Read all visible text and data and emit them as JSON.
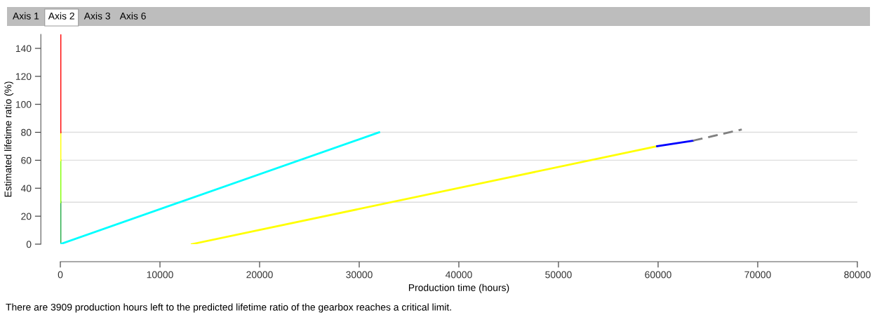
{
  "chart_data": {
    "type": "line",
    "xlabel": "Production time (hours)",
    "ylabel": "Estimated lifetime ratio (%)",
    "xlim": [
      0,
      80000
    ],
    "xticks": [
      0,
      10000,
      20000,
      30000,
      40000,
      50000,
      60000,
      70000,
      80000
    ],
    "ylim": [
      0,
      150
    ],
    "yticks": [
      0,
      20,
      40,
      60,
      80,
      100,
      120,
      140
    ],
    "grid": false,
    "series": [
      {
        "color": "#22aa44",
        "x": [
          0,
          0
        ],
        "values": [
          0,
          30
        ]
      },
      {
        "color": "#80ff00",
        "x": [
          0,
          0
        ],
        "values": [
          30,
          60
        ]
      },
      {
        "color": "#ffff00",
        "x": [
          0,
          0
        ],
        "values": [
          60,
          80
        ]
      },
      {
        "color": "#ff0000",
        "x": [
          0,
          0
        ],
        "values": [
          80,
          150
        ]
      },
      {
        "color": "#00ffff",
        "x": [
          0,
          32000
        ],
        "values": [
          0,
          80
        ]
      },
      {
        "color": "#ffff00",
        "x": [
          13200,
          59900
        ],
        "values": [
          0,
          70
        ]
      },
      {
        "color": "#0000ff",
        "x": [
          59900,
          63500
        ],
        "values": [
          70,
          74
        ]
      },
      {
        "color": "#808080",
        "x": [
          63500,
          68400
        ],
        "values": [
          74,
          82
        ],
        "line_style": "dashed"
      }
    ],
    "ref_lines": [
      {
        "axis": "y",
        "value": 30,
        "color": "#dddddd"
      },
      {
        "axis": "y",
        "value": 60,
        "color": "#dddddd"
      },
      {
        "axis": "y",
        "value": 80,
        "color": "#dddddd"
      }
    ],
    "annotations": [
      "Axis 1",
      "Axis 2",
      "Axis 3",
      "Axis 6",
      "There are 3909 production hours left to the predicted lifetime ratio of the gearbox reaches a critical limit."
    ]
  }
}
